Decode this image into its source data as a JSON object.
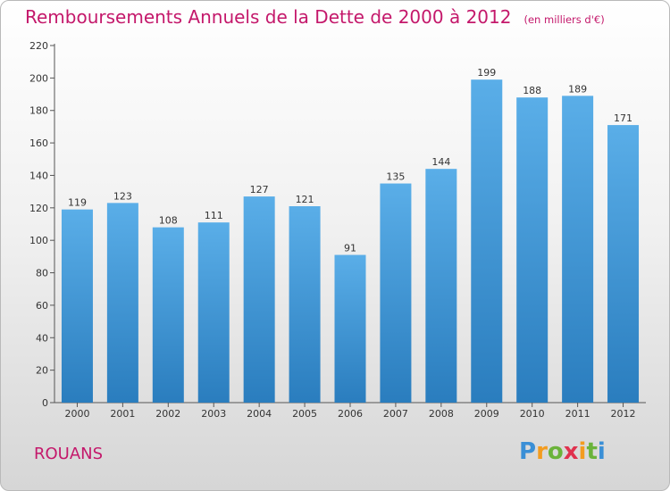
{
  "title": "Remboursements Annuels de la Dette de 2000 à 2012",
  "unit": "(en milliers d'€)",
  "town": "ROUANS",
  "logo": {
    "letters": [
      "P",
      "r",
      "o",
      "x",
      "i",
      "t",
      "i"
    ],
    "colors": [
      "#3a8fd6",
      "#f39c1f",
      "#6bb33a",
      "#e0324e",
      "#f39c1f",
      "#6bb33a",
      "#3a8fd6"
    ]
  },
  "colors": {
    "accent": "#c4186b",
    "bar_top": "#5aaee8",
    "bar_bottom": "#2a7dbe"
  },
  "chart_data": {
    "type": "bar",
    "categories": [
      "2000",
      "2001",
      "2002",
      "2003",
      "2004",
      "2005",
      "2006",
      "2007",
      "2008",
      "2009",
      "2010",
      "2011",
      "2012"
    ],
    "values": [
      119,
      123,
      108,
      111,
      127,
      121,
      91,
      135,
      144,
      199,
      188,
      189,
      171
    ],
    "ylim": [
      0,
      220
    ],
    "yticks": [
      0,
      20,
      40,
      60,
      80,
      100,
      120,
      140,
      160,
      180,
      200,
      220
    ],
    "xlabel": "",
    "ylabel": "",
    "grid": false
  }
}
